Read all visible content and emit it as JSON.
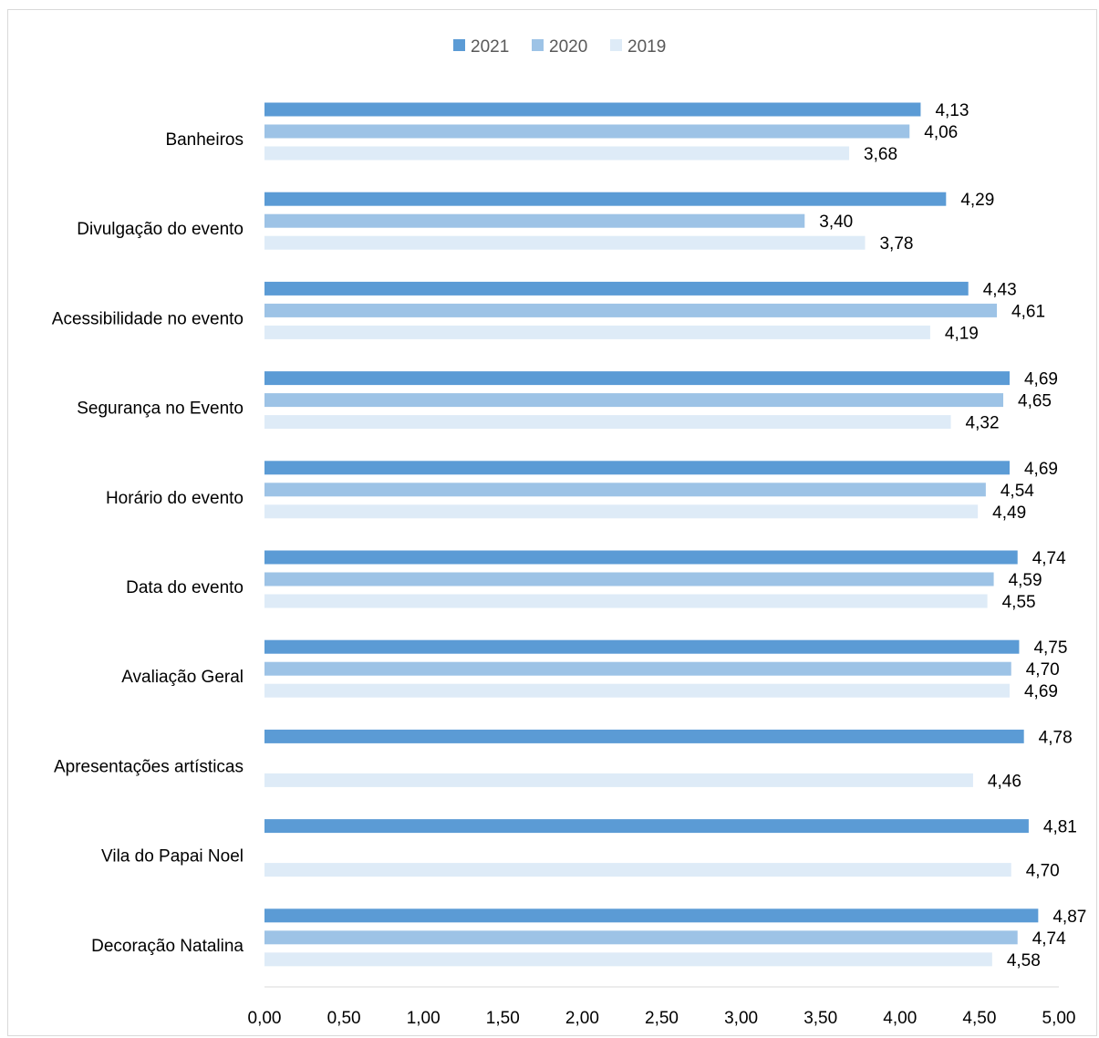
{
  "chart_data": {
    "type": "bar",
    "orientation": "horizontal",
    "title": "",
    "xlabel": "",
    "ylabel": "",
    "xlim": [
      0,
      5
    ],
    "xticks": [
      "0,00",
      "0,50",
      "1,00",
      "1,50",
      "2,00",
      "2,50",
      "3,00",
      "3,50",
      "4,00",
      "4,50",
      "5,00"
    ],
    "grid": false,
    "legend_position": "top",
    "categories": [
      "Banheiros",
      "Divulgação do evento",
      "Acessibilidade no evento",
      "Segurança no Evento",
      "Horário do evento",
      "Data do evento",
      "Avaliação Geral",
      "Apresentações artísticas",
      "Vila do Papai Noel",
      "Decoração Natalina"
    ],
    "series": [
      {
        "name": "2021",
        "color": "#5b9bd5",
        "values": [
          4.13,
          4.29,
          4.43,
          4.69,
          4.69,
          4.74,
          4.75,
          4.78,
          4.81,
          4.87
        ],
        "labels": [
          "4,13",
          "4,29",
          "4,43",
          "4,69",
          "4,69",
          "4,74",
          "4,75",
          "4,78",
          "4,81",
          "4,87"
        ]
      },
      {
        "name": "2020",
        "color": "#9dc3e6",
        "values": [
          4.06,
          3.4,
          4.61,
          4.65,
          4.54,
          4.59,
          4.7,
          null,
          null,
          4.74
        ],
        "labels": [
          "4,06",
          "3,40",
          "4,61",
          "4,65",
          "4,54",
          "4,59",
          "4,70",
          null,
          null,
          "4,74"
        ]
      },
      {
        "name": "2019",
        "color": "#deebf7",
        "values": [
          3.68,
          3.78,
          4.19,
          4.32,
          4.49,
          4.55,
          4.69,
          4.46,
          4.7,
          4.58
        ],
        "labels": [
          "3,68",
          "3,78",
          "4,19",
          "4,32",
          "4,49",
          "4,55",
          "4,69",
          "4,46",
          "4,70",
          "4,58"
        ]
      }
    ]
  }
}
